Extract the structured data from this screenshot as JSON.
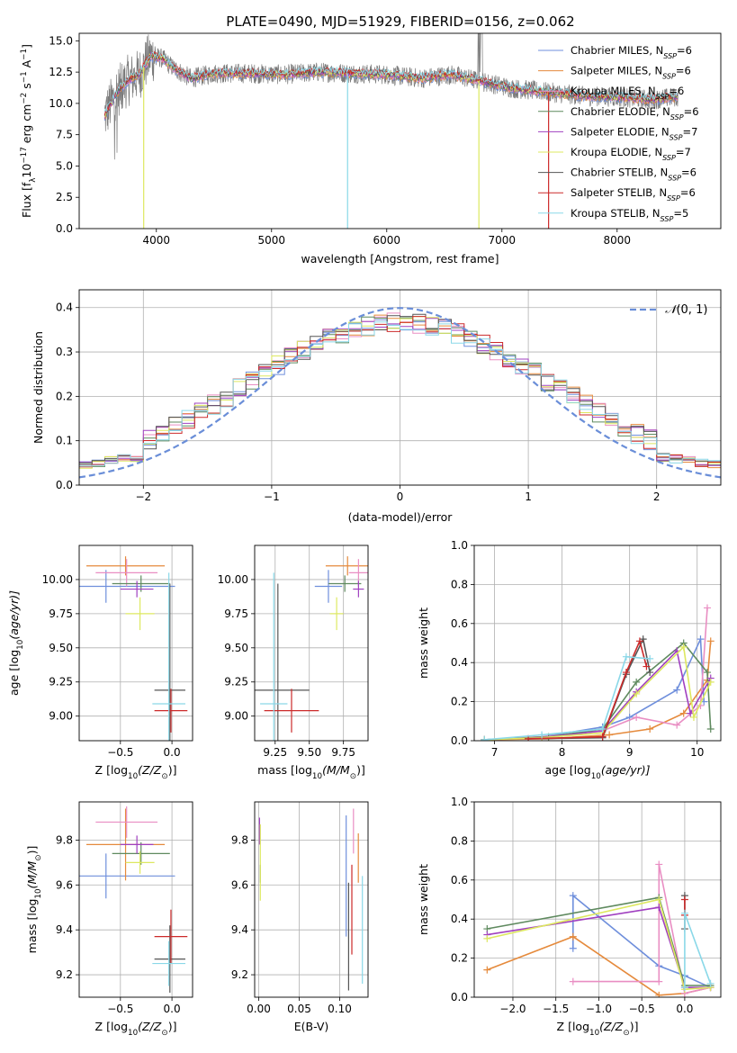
{
  "colors": [
    "#6f8fdc",
    "#e58a3c",
    "#e98ec3",
    "#5f8a5f",
    "#a040c0",
    "#dde860",
    "#555555",
    "#cc2a2a",
    "#8ad8e8"
  ],
  "chart_data": [
    {
      "id": "spectrum",
      "type": "line",
      "title": "PLATE=0490, MJD=51929, FIBERID=0156, z=0.062",
      "xlabel": "wavelength [Angstrom, rest frame]",
      "ylabel_parts": [
        "Flux [f",
        "λ",
        "10",
        "−17",
        " erg cm",
        "−2",
        " s",
        "−1",
        " A",
        "−1",
        "]"
      ],
      "xlim": [
        3330,
        8900
      ],
      "ylim": [
        0,
        15.6
      ],
      "xticks": [
        4000,
        5000,
        6000,
        7000,
        8000
      ],
      "yticks": [
        0.0,
        2.5,
        5.0,
        7.5,
        10.0,
        12.5,
        15.0
      ],
      "ytick_labels": [
        "0.0",
        "2.5",
        "5.0",
        "7.5",
        "10.0",
        "12.5",
        "15.0"
      ],
      "continuum_points": [
        [
          3550,
          9.0
        ],
        [
          3650,
          10.8
        ],
        [
          3750,
          11.8
        ],
        [
          3850,
          12.3
        ],
        [
          3950,
          13.8
        ],
        [
          4050,
          13.6
        ],
        [
          4150,
          12.8
        ],
        [
          4300,
          12.0
        ],
        [
          4500,
          12.4
        ],
        [
          4800,
          12.4
        ],
        [
          5100,
          12.3
        ],
        [
          5400,
          12.5
        ],
        [
          5700,
          12.4
        ],
        [
          6000,
          12.3
        ],
        [
          6300,
          12.0
        ],
        [
          6560,
          12.3
        ],
        [
          6800,
          11.8
        ],
        [
          7100,
          11.2
        ],
        [
          7400,
          10.9
        ],
        [
          7700,
          10.6
        ],
        [
          8000,
          10.5
        ],
        [
          8300,
          10.3
        ],
        [
          8500,
          10.5
        ]
      ],
      "data_range": [
        3550,
        8530
      ],
      "legend_position": "top-right",
      "legend_parts": [
        [
          "Chabrier MILES, N",
          "SSP",
          "=6"
        ],
        [
          "Salpeter MILES, N",
          "SSP",
          "=6"
        ],
        [
          "Kroupa MILES, N",
          "SSP",
          "=6"
        ],
        [
          "Chabrier ELODIE, N",
          "SSP",
          "=6"
        ],
        [
          "Salpeter ELODIE, N",
          "SSP",
          "=7"
        ],
        [
          "Kroupa ELODIE, N",
          "SSP",
          "=7"
        ],
        [
          "Chabrier STELIB, N",
          "SSP",
          "=6"
        ],
        [
          "Salpeter STELIB, N",
          "SSP",
          "=6"
        ],
        [
          "Kroupa STELIB, N",
          "SSP",
          "=5"
        ]
      ]
    },
    {
      "id": "residuals",
      "type": "step",
      "xlabel": "(data-model)/error",
      "ylabel": "Normed distribution",
      "xlim": [
        -2.5,
        2.5
      ],
      "ylim": [
        0,
        0.44
      ],
      "xticks": [
        -2,
        -1,
        0,
        1,
        2
      ],
      "xtick_labels": [
        "−2",
        "−1",
        "0",
        "1",
        "2"
      ],
      "yticks": [
        0.0,
        0.1,
        0.2,
        0.3,
        0.4
      ],
      "ytick_labels": [
        "0.0",
        "0.1",
        "0.2",
        "0.3",
        "0.4"
      ],
      "bin_width": 0.1,
      "reference_curve": "gaussian N(0,1)",
      "legend_position": "top-right",
      "legend_label_parts": [
        "𝒩",
        "(0, 1)"
      ]
    },
    {
      "id": "age-vs-z",
      "type": "errorbar",
      "xlabel_parts": [
        "Z [log",
        "10",
        "(Z/Z",
        "⊙",
        ")]"
      ],
      "ylabel_parts": [
        "age  [log",
        "10",
        "(age/yr)]"
      ],
      "xlim": [
        -0.9,
        0.2
      ],
      "ylim": [
        8.82,
        10.25
      ],
      "xticks": [
        -0.5,
        0.0
      ],
      "xtick_labels": [
        "−0.5",
        "0.0"
      ],
      "yticks": [
        9.0,
        9.25,
        9.5,
        9.75,
        10.0
      ],
      "ytick_labels": [
        "9.00",
        "9.25",
        "9.50",
        "9.75",
        "10.00"
      ],
      "points": [
        {
          "x": -0.64,
          "xerr": 0.67,
          "y": 9.95,
          "yerr": 0.12
        },
        {
          "x": -0.45,
          "xerr": 0.38,
          "y": 10.1,
          "yerr": 0.07
        },
        {
          "x": -0.44,
          "xerr": 0.3,
          "y": 10.05,
          "yerr": 0.1
        },
        {
          "x": -0.3,
          "xerr": 0.28,
          "y": 9.97,
          "yerr": 0.06
        },
        {
          "x": -0.34,
          "xerr": 0.16,
          "y": 9.93,
          "yerr": 0.06
        },
        {
          "x": -0.31,
          "xerr": 0.14,
          "y": 9.75,
          "yerr": 0.12
        },
        {
          "x": -0.02,
          "xerr": 0.15,
          "y": 9.19,
          "yerr": 0.78
        },
        {
          "x": -0.01,
          "xerr": 0.16,
          "y": 9.04,
          "yerr": 0.16
        },
        {
          "x": -0.03,
          "xerr": 0.16,
          "y": 9.09,
          "yerr": 0.96
        }
      ]
    },
    {
      "id": "age-vs-mass",
      "type": "errorbar",
      "xlabel_parts": [
        "mass [log",
        "10",
        "(M/M",
        "⊙",
        ")]"
      ],
      "xlim": [
        9.1,
        9.93
      ],
      "ylim": [
        8.82,
        10.25
      ],
      "xticks": [
        9.25,
        9.5,
        9.75
      ],
      "xtick_labels": [
        "9.25",
        "9.50",
        "9.75"
      ],
      "yticks": [
        9.0,
        9.25,
        9.5,
        9.75,
        10.0
      ],
      "ytick_labels": [
        "9.00",
        "9.25",
        "9.50",
        "9.75",
        "10.00"
      ],
      "points": [
        {
          "x": 9.64,
          "xerr": 0.1,
          "y": 9.95,
          "yerr": 0.12
        },
        {
          "x": 9.78,
          "xerr": 0.16,
          "y": 10.1,
          "yerr": 0.07
        },
        {
          "x": 9.86,
          "xerr": 0.07,
          "y": 10.05,
          "yerr": 0.1
        },
        {
          "x": 9.76,
          "xerr": 0.12,
          "y": 9.97,
          "yerr": 0.06
        },
        {
          "x": 9.86,
          "xerr": 0.04,
          "y": 9.93,
          "yerr": 0.06
        },
        {
          "x": 9.7,
          "xerr": 0.05,
          "y": 9.75,
          "yerr": 0.12
        },
        {
          "x": 9.27,
          "xerr": 0.23,
          "y": 9.19,
          "yerr": 0.78
        },
        {
          "x": 9.37,
          "xerr": 0.2,
          "y": 9.04,
          "yerr": 0.16
        },
        {
          "x": 9.24,
          "xerr": 0.1,
          "y": 9.09,
          "yerr": 0.96
        }
      ]
    },
    {
      "id": "weight-vs-age",
      "type": "line",
      "xlabel_parts": [
        "age  [log",
        "10",
        "(age/yr)]"
      ],
      "ylabel": "mass weight",
      "xlim": [
        6.7,
        10.35
      ],
      "ylim": [
        0,
        1
      ],
      "xticks": [
        7,
        8,
        9,
        10
      ],
      "xtick_labels": [
        "7",
        "8",
        "9",
        "10"
      ],
      "yticks": [
        0.0,
        0.2,
        0.4,
        0.6,
        0.8,
        1.0
      ],
      "ytick_labels": [
        "0.0",
        "0.2",
        "0.4",
        "0.6",
        "0.8",
        "1.0"
      ],
      "series": [
        {
          "points": [
            [
              6.85,
              0.005
            ],
            [
              7.7,
              0.02
            ],
            [
              8.6,
              0.07
            ],
            [
              9.0,
              0.12
            ],
            [
              9.7,
              0.26
            ],
            [
              10.05,
              0.52
            ],
            [
              10.1,
              0.2
            ]
          ]
        },
        {
          "points": [
            [
              6.85,
              0.005
            ],
            [
              7.8,
              0.01
            ],
            [
              8.7,
              0.03
            ],
            [
              9.3,
              0.06
            ],
            [
              9.8,
              0.14
            ],
            [
              10.15,
              0.31
            ],
            [
              10.2,
              0.51
            ]
          ]
        },
        {
          "points": [
            [
              6.85,
              0.005
            ],
            [
              7.7,
              0.02
            ],
            [
              8.6,
              0.05
            ],
            [
              9.1,
              0.12
            ],
            [
              9.7,
              0.08
            ],
            [
              10.05,
              0.18
            ],
            [
              10.15,
              0.68
            ]
          ]
        },
        {
          "points": [
            [
              6.85,
              0.005
            ],
            [
              7.8,
              0.02
            ],
            [
              8.6,
              0.06
            ],
            [
              9.1,
              0.3
            ],
            [
              9.8,
              0.5
            ],
            [
              10.15,
              0.35
            ],
            [
              10.2,
              0.06
            ]
          ]
        },
        {
          "points": [
            [
              6.85,
              0.005
            ],
            [
              7.7,
              0.015
            ],
            [
              8.6,
              0.05
            ],
            [
              9.1,
              0.25
            ],
            [
              9.7,
              0.46
            ],
            [
              9.9,
              0.14
            ],
            [
              10.2,
              0.32
            ]
          ]
        },
        {
          "points": [
            [
              6.85,
              0.005
            ],
            [
              7.7,
              0.015
            ],
            [
              8.6,
              0.04
            ],
            [
              9.1,
              0.24
            ],
            [
              9.8,
              0.48
            ],
            [
              9.95,
              0.12
            ],
            [
              10.2,
              0.3
            ]
          ]
        },
        {
          "points": [
            [
              7.5,
              0.01
            ],
            [
              8.6,
              0.015
            ],
            [
              8.95,
              0.34
            ],
            [
              9.2,
              0.52
            ],
            [
              9.3,
              0.35
            ]
          ]
        },
        {
          "points": [
            [
              7.5,
              0.01
            ],
            [
              8.6,
              0.02
            ],
            [
              8.95,
              0.35
            ],
            [
              9.15,
              0.51
            ],
            [
              9.25,
              0.38
            ]
          ]
        },
        {
          "points": [
            [
              6.85,
              0.005
            ],
            [
              7.7,
              0.03
            ],
            [
              8.6,
              0.06
            ],
            [
              8.95,
              0.43
            ],
            [
              9.3,
              0.42
            ]
          ]
        }
      ]
    },
    {
      "id": "mass-vs-z",
      "type": "errorbar",
      "xlabel_parts": [
        "Z [log",
        "10",
        "(Z/Z",
        "⊙",
        ")]"
      ],
      "ylabel_parts": [
        "mass [log",
        "10",
        "(M/M",
        "⊙",
        ")]"
      ],
      "xlim": [
        -0.9,
        0.2
      ],
      "ylim": [
        9.1,
        9.97
      ],
      "xticks": [
        -0.5,
        0.0
      ],
      "xtick_labels": [
        "−0.5",
        "0.0"
      ],
      "yticks": [
        9.2,
        9.4,
        9.6,
        9.8
      ],
      "ytick_labels": [
        "9.2",
        "9.4",
        "9.6",
        "9.8"
      ],
      "points": [
        {
          "x": -0.64,
          "xerr": 0.67,
          "y": 9.64,
          "yerr": 0.1
        },
        {
          "x": -0.45,
          "xerr": 0.38,
          "y": 9.78,
          "yerr": 0.16
        },
        {
          "x": -0.44,
          "xerr": 0.3,
          "y": 9.88,
          "yerr": 0.07
        },
        {
          "x": -0.3,
          "xerr": 0.28,
          "y": 9.74,
          "yerr": 0.05
        },
        {
          "x": -0.34,
          "xerr": 0.16,
          "y": 9.78,
          "yerr": 0.04
        },
        {
          "x": -0.31,
          "xerr": 0.14,
          "y": 9.7,
          "yerr": 0.05
        },
        {
          "x": -0.02,
          "xerr": 0.15,
          "y": 9.27,
          "yerr": 0.15
        },
        {
          "x": -0.01,
          "xerr": 0.16,
          "y": 9.37,
          "yerr": 0.12
        },
        {
          "x": -0.03,
          "xerr": 0.16,
          "y": 9.25,
          "yerr": 0.1
        }
      ]
    },
    {
      "id": "mass-vs-ebv",
      "type": "errorbar",
      "xlabel": "E(B-V)",
      "xlim": [
        -0.005,
        0.135
      ],
      "ylim": [
        9.1,
        9.97
      ],
      "xticks": [
        0.0,
        0.05,
        0.1
      ],
      "xtick_labels": [
        "0.00",
        "0.05",
        "0.10"
      ],
      "yticks": [
        9.2,
        9.4,
        9.6,
        9.8
      ],
      "ytick_labels": [
        "9.2",
        "9.4",
        "9.6",
        "9.8"
      ],
      "points": [
        {
          "x": 0.108,
          "xerr": 0,
          "y": 9.64,
          "yerr": 0.27
        },
        {
          "x": 0.123,
          "xerr": 0,
          "y": 9.72,
          "yerr": 0.11
        },
        {
          "x": 0.117,
          "xerr": 0,
          "y": 9.84,
          "yerr": 0.1
        },
        {
          "x": 0.002,
          "xerr": 0,
          "y": 9.65,
          "yerr": 0.04
        },
        {
          "x": 0.001,
          "xerr": 0,
          "y": 9.84,
          "yerr": 0.06
        },
        {
          "x": 0.002,
          "xerr": 0,
          "y": 9.7,
          "yerr": 0.17
        },
        {
          "x": 0.111,
          "xerr": 0,
          "y": 9.37,
          "yerr": 0.24
        },
        {
          "x": 0.115,
          "xerr": 0,
          "y": 9.49,
          "yerr": 0.2
        },
        {
          "x": 0.128,
          "xerr": 0,
          "y": 9.4,
          "yerr": 0.24
        }
      ]
    },
    {
      "id": "weight-vs-z",
      "type": "line",
      "xlabel_parts": [
        "Z [log",
        "10",
        "(Z/Z",
        "⊙",
        ")]"
      ],
      "ylabel": "mass weight",
      "xlim": [
        -2.45,
        0.42
      ],
      "ylim": [
        0,
        1
      ],
      "xticks": [
        -2.0,
        -1.5,
        -1.0,
        -0.5,
        0.0
      ],
      "xtick_labels": [
        "−2.0",
        "−1.5",
        "−1.0",
        "−0.5",
        "0.0"
      ],
      "yticks": [
        0.0,
        0.2,
        0.4,
        0.6,
        0.8,
        1.0
      ],
      "ytick_labels": [
        "0.0",
        "0.2",
        "0.4",
        "0.6",
        "0.8",
        "1.0"
      ],
      "series": [
        {
          "points": [
            [
              -1.3,
              0.25
            ],
            [
              -1.3,
              0.52
            ],
            [
              -0.3,
              0.16
            ],
            [
              0.0,
              0.11
            ],
            [
              0.3,
              0.05
            ]
          ]
        },
        {
          "points": [
            [
              -2.3,
              0.14
            ],
            [
              -1.3,
              0.31
            ],
            [
              -0.3,
              0.01
            ],
            [
              0.0,
              0.02
            ],
            [
              0.3,
              0.05
            ]
          ]
        },
        {
          "points": [
            [
              -1.3,
              0.08
            ],
            [
              -0.3,
              0.08
            ],
            [
              -0.3,
              0.68
            ],
            [
              0.0,
              0.02
            ],
            [
              0.3,
              0.05
            ]
          ]
        },
        {
          "points": [
            [
              -2.3,
              0.35
            ],
            [
              -0.3,
              0.51
            ],
            [
              0.0,
              0.06
            ],
            [
              0.3,
              0.06
            ]
          ]
        },
        {
          "points": [
            [
              -2.3,
              0.32
            ],
            [
              -0.3,
              0.46
            ],
            [
              0.0,
              0.05
            ],
            [
              0.3,
              0.05
            ]
          ]
        },
        {
          "points": [
            [
              -2.3,
              0.3
            ],
            [
              -0.3,
              0.5
            ],
            [
              0.0,
              0.04
            ],
            [
              0.3,
              0.05
            ]
          ]
        },
        {
          "points": [
            [
              0.0,
              0.35
            ],
            [
              0.0,
              0.52
            ]
          ]
        },
        {
          "points": [
            [
              0.0,
              0.42
            ],
            [
              0.0,
              0.5
            ]
          ]
        },
        {
          "points": [
            [
              0.0,
              0.05
            ],
            [
              0.0,
              0.43
            ],
            [
              0.3,
              0.07
            ]
          ]
        }
      ]
    }
  ]
}
